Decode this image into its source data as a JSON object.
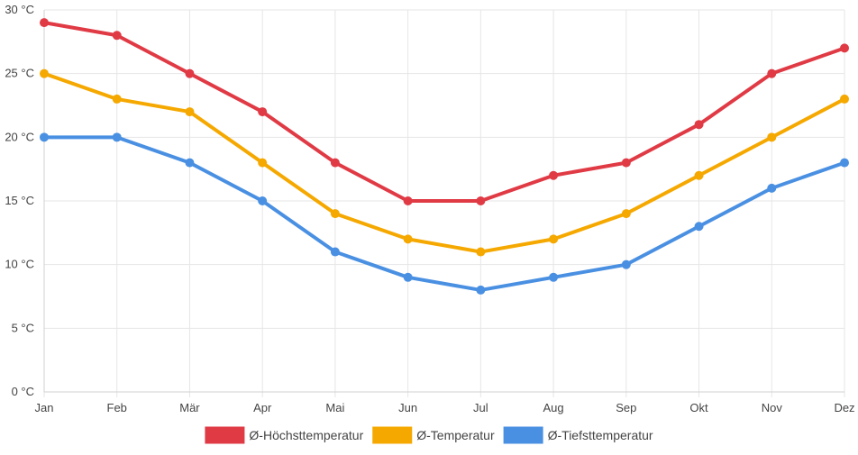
{
  "chart_data": {
    "type": "line",
    "title": "",
    "xlabel": "",
    "ylabel": "",
    "categories": [
      "Jan",
      "Feb",
      "Mär",
      "Apr",
      "Mai",
      "Jun",
      "Jul",
      "Aug",
      "Sep",
      "Okt",
      "Nov",
      "Dez"
    ],
    "ylim": [
      0,
      30
    ],
    "yticks": [
      0,
      5,
      10,
      15,
      20,
      25,
      30
    ],
    "ytick_labels": [
      "0 °C",
      "5 °C",
      "10 °C",
      "15 °C",
      "20 °C",
      "25 °C",
      "30 °C"
    ],
    "grid": true,
    "legend_position": "bottom",
    "series": [
      {
        "name": "Ø-Höchsttemperatur",
        "color": "#e03a45",
        "values": [
          29,
          28,
          25,
          22,
          18,
          15,
          15,
          17,
          18,
          21,
          25,
          27
        ]
      },
      {
        "name": "Ø-Temperatur",
        "color": "#f5a800",
        "values": [
          25,
          23,
          22,
          18,
          14,
          12,
          11,
          12,
          14,
          17,
          20,
          23
        ]
      },
      {
        "name": "Ø-Tiefsttemperatur",
        "color": "#4a90e2",
        "values": [
          20,
          20,
          18,
          15,
          11,
          9,
          8,
          9,
          10,
          13,
          16,
          18
        ]
      }
    ]
  }
}
